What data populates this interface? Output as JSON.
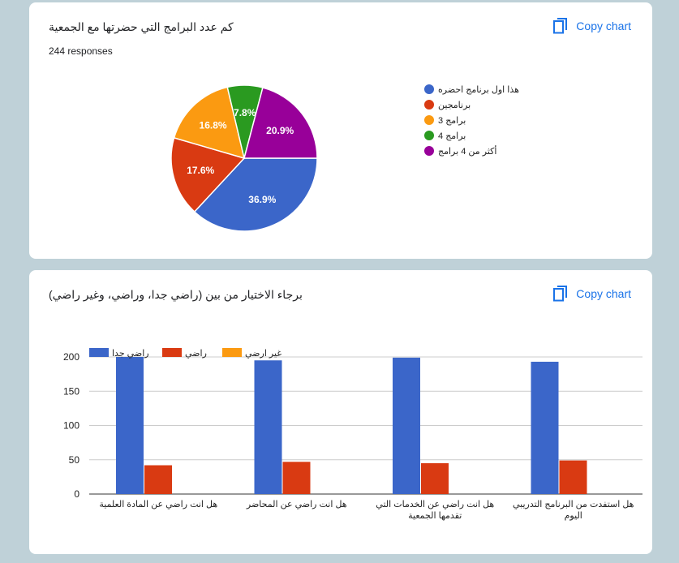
{
  "charts": [
    {
      "title": "كم عدد البرامج التي حضرتها مع الجمعية",
      "subtitle": "244 responses",
      "copy_label": "Copy chart"
    },
    {
      "title": "برجاء الاختيار من بين (راضي جدا، وراضي، وغير راضي)",
      "copy_label": "Copy chart"
    }
  ],
  "icons": {
    "copy": "copy-icon"
  },
  "chart_data": [
    {
      "type": "pie",
      "title": "كم عدد البرامج التي حضرتها مع الجمعية",
      "subtitle": "244 responses",
      "legend_position": "right",
      "slices": [
        {
          "label": "هذا اول برنامج احضره",
          "value": 36.9,
          "pct": "36.9%",
          "color": "#3b66c9"
        },
        {
          "label": "برنامجين",
          "value": 17.6,
          "pct": "17.6%",
          "color": "#d93a12"
        },
        {
          "label": "3 برامج",
          "value": 16.8,
          "pct": "16.8%",
          "color": "#fb9a11"
        },
        {
          "label": "4 برامج",
          "value": 7.8,
          "pct": "7.8%",
          "color": "#2a9a20"
        },
        {
          "label": "أكثر من 4 برامج",
          "value": 20.9,
          "pct": "20.9%",
          "color": "#980099"
        }
      ]
    },
    {
      "type": "bar",
      "title": "برجاء الاختيار من بين (راضي جدا، وراضي، وغير راضي)",
      "categories": [
        "هل انت راضي عن المادة العلمية",
        "هل انت راضي عن المحاضر",
        "هل انت راضي عن الخدمات التي تقدمها الجمعية",
        "هل استفدت من البرنامج التدريبي اليوم"
      ],
      "series": [
        {
          "name": "راضي جدا",
          "color": "#3b66c9",
          "values": [
            200,
            195,
            199,
            193
          ]
        },
        {
          "name": "راضي",
          "color": "#d93a12",
          "values": [
            42,
            47,
            45,
            49
          ]
        },
        {
          "name": "غير ارضي",
          "color": "#fb9a11",
          "values": [
            0,
            0,
            0,
            0
          ]
        }
      ],
      "yticks": [
        0,
        50,
        100,
        150,
        200
      ],
      "ylim": [
        0,
        200
      ],
      "grid": true,
      "legend_position": "top-left"
    }
  ]
}
